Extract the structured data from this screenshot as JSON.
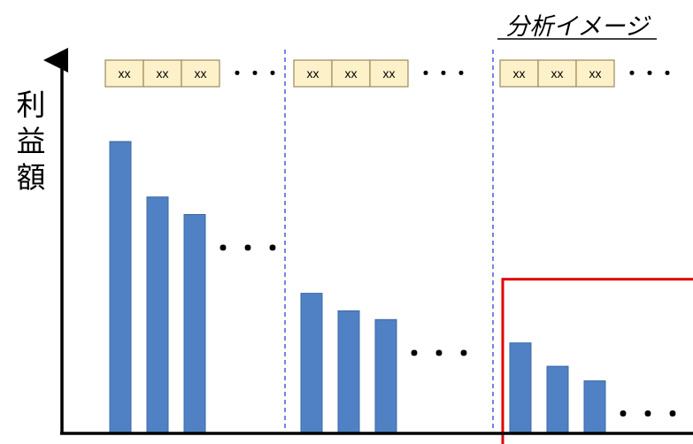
{
  "chart_data": {
    "type": "bar",
    "title": "分析イメージ",
    "ylabel": "利益額",
    "xlabel": "",
    "groups": [
      {
        "labels": [
          "xx",
          "xx",
          "xx"
        ],
        "values": [
          100,
          81,
          75
        ],
        "continues": "・・・"
      },
      {
        "labels": [
          "xx",
          "xx",
          "xx"
        ],
        "values": [
          48,
          42,
          39
        ],
        "continues": "・・・"
      },
      {
        "labels": [
          "xx",
          "xx",
          "xx"
        ],
        "values": [
          31,
          23,
          18
        ],
        "continues": "・・・"
      }
    ],
    "header_continues": "・・・",
    "ylim": [
      0,
      100
    ],
    "highlight_group": 2,
    "colors": {
      "bar": "#4f81c4",
      "bar_edge": "#3e6aa6",
      "label_fill": "#fdf1c9",
      "label_edge": "#9a8a5c",
      "highlight": "#e00000",
      "separator": "#3355dd",
      "axis": "#000000"
    }
  }
}
